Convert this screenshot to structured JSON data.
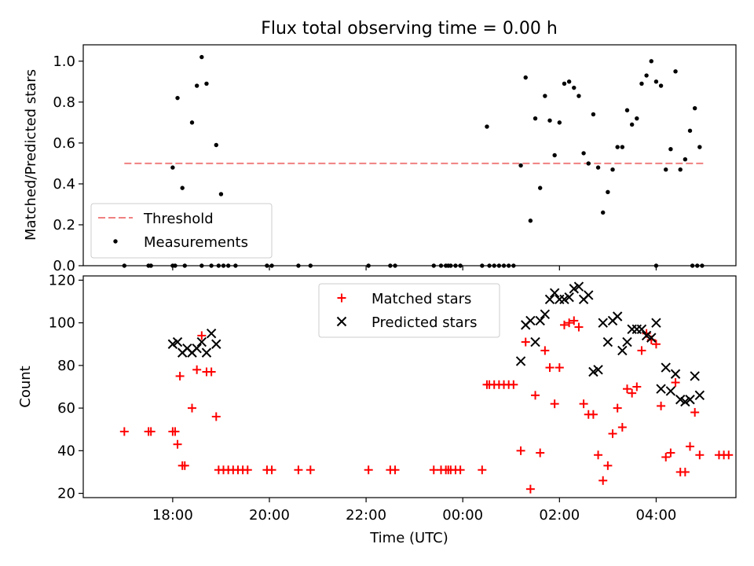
{
  "figure": {
    "title": "Flux total observing time = 0.00 h"
  },
  "chart_data": [
    {
      "type": "scatter",
      "title": "Flux total observing time = 0.00 h",
      "xlabel": "",
      "ylabel": "Matched/Predicted stars",
      "x_unit": "hours relative to 00:00 UTC",
      "xlim": [
        -7.85,
        5.65
      ],
      "ylim": [
        0.0,
        1.08
      ],
      "yticks": [
        0.0,
        0.2,
        0.4,
        0.6,
        0.8,
        1.0
      ],
      "ytick_labels": [
        "0.0",
        "0.2",
        "0.4",
        "0.6",
        "0.8",
        "1.0"
      ],
      "grid": false,
      "legend": "lower-left",
      "threshold": {
        "name": "Threshold",
        "value": 0.5,
        "x_range": [
          -7.0,
          5.0
        ],
        "color": "#f08080"
      },
      "series": [
        {
          "name": "Measurements",
          "marker": "dot",
          "color": "#000000",
          "points": [
            [
              -7.0,
              0
            ],
            [
              -6.5,
              0
            ],
            [
              -6.45,
              0
            ],
            [
              -6.0,
              0
            ],
            [
              -5.95,
              0
            ],
            [
              -5.75,
              0
            ],
            [
              -5.4,
              0
            ],
            [
              -5.2,
              0
            ],
            [
              -5.05,
              0
            ],
            [
              -4.95,
              0
            ],
            [
              -4.85,
              0
            ],
            [
              -4.7,
              0
            ],
            [
              -4.05,
              0
            ],
            [
              -3.95,
              0
            ],
            [
              -3.4,
              0
            ],
            [
              -3.15,
              0
            ],
            [
              -1.95,
              0
            ],
            [
              -1.5,
              0
            ],
            [
              -1.4,
              0
            ],
            [
              -0.6,
              0
            ],
            [
              -0.45,
              0
            ],
            [
              -0.35,
              0
            ],
            [
              -0.3,
              0
            ],
            [
              -0.25,
              0
            ],
            [
              -0.15,
              0
            ],
            [
              -0.05,
              0
            ],
            [
              0.4,
              0
            ],
            [
              0.55,
              0
            ],
            [
              0.65,
              0
            ],
            [
              0.75,
              0
            ],
            [
              0.85,
              0
            ],
            [
              0.95,
              0
            ],
            [
              1.05,
              0
            ],
            [
              4.0,
              0
            ],
            [
              4.75,
              0
            ],
            [
              4.85,
              0
            ],
            [
              4.95,
              0
            ],
            [
              -6.0,
              0.48
            ],
            [
              -5.9,
              0.82
            ],
            [
              -5.8,
              0.38
            ],
            [
              -5.6,
              0.7
            ],
            [
              -5.5,
              0.88
            ],
            [
              -5.4,
              1.02
            ],
            [
              -5.3,
              0.89
            ],
            [
              -5.1,
              0.59
            ],
            [
              -5.0,
              0.35
            ],
            [
              0.5,
              0.68
            ],
            [
              1.2,
              0.49
            ],
            [
              1.3,
              0.92
            ],
            [
              1.4,
              0.22
            ],
            [
              1.5,
              0.72
            ],
            [
              1.6,
              0.38
            ],
            [
              1.7,
              0.83
            ],
            [
              1.8,
              0.71
            ],
            [
              1.9,
              0.54
            ],
            [
              2.0,
              0.7
            ],
            [
              2.1,
              0.89
            ],
            [
              2.2,
              0.9
            ],
            [
              2.3,
              0.87
            ],
            [
              2.4,
              0.83
            ],
            [
              2.5,
              0.55
            ],
            [
              2.6,
              0.5
            ],
            [
              2.7,
              0.74
            ],
            [
              2.8,
              0.48
            ],
            [
              2.9,
              0.26
            ],
            [
              3.0,
              0.36
            ],
            [
              3.1,
              0.47
            ],
            [
              3.2,
              0.58
            ],
            [
              3.3,
              0.58
            ],
            [
              3.4,
              0.76
            ],
            [
              3.5,
              0.69
            ],
            [
              3.6,
              0.72
            ],
            [
              3.7,
              0.89
            ],
            [
              3.8,
              0.93
            ],
            [
              3.9,
              1.0
            ],
            [
              4.0,
              0.9
            ],
            [
              4.1,
              0.88
            ],
            [
              4.2,
              0.47
            ],
            [
              4.3,
              0.57
            ],
            [
              4.4,
              0.95
            ],
            [
              4.5,
              0.47
            ],
            [
              4.6,
              0.52
            ],
            [
              4.7,
              0.66
            ],
            [
              4.8,
              0.77
            ],
            [
              4.9,
              0.58
            ]
          ]
        }
      ]
    },
    {
      "type": "scatter",
      "title": "",
      "xlabel": "Time (UTC)",
      "ylabel": "Count",
      "x_unit": "hours relative to 00:00 UTC",
      "xlim": [
        -7.85,
        5.65
      ],
      "ylim": [
        18,
        122
      ],
      "xticks": [
        -6,
        -4,
        -2,
        0,
        2,
        4
      ],
      "xtick_labels": [
        "18:00",
        "20:00",
        "22:00",
        "00:00",
        "02:00",
        "04:00"
      ],
      "yticks": [
        20,
        40,
        60,
        80,
        100,
        120
      ],
      "ytick_labels": [
        "20",
        "40",
        "60",
        "80",
        "100",
        "120"
      ],
      "grid": false,
      "legend": "upper-center",
      "series": [
        {
          "name": "Matched stars",
          "marker": "plus",
          "color": "#ff0000",
          "points": [
            [
              -7.0,
              49
            ],
            [
              -6.5,
              49
            ],
            [
              -6.45,
              49
            ],
            [
              -6.0,
              49
            ],
            [
              -5.95,
              49
            ],
            [
              -5.9,
              43
            ],
            [
              -5.85,
              75
            ],
            [
              -5.8,
              33
            ],
            [
              -5.75,
              33
            ],
            [
              -5.6,
              60
            ],
            [
              -5.5,
              78
            ],
            [
              -5.4,
              94
            ],
            [
              -5.3,
              77
            ],
            [
              -5.2,
              77
            ],
            [
              -5.1,
              56
            ],
            [
              -5.05,
              31
            ],
            [
              -4.95,
              31
            ],
            [
              -4.85,
              31
            ],
            [
              -4.75,
              31
            ],
            [
              -4.65,
              31
            ],
            [
              -4.55,
              31
            ],
            [
              -4.45,
              31
            ],
            [
              -4.05,
              31
            ],
            [
              -3.95,
              31
            ],
            [
              -3.4,
              31
            ],
            [
              -3.15,
              31
            ],
            [
              -1.95,
              31
            ],
            [
              -1.5,
              31
            ],
            [
              -1.4,
              31
            ],
            [
              -0.6,
              31
            ],
            [
              -0.45,
              31
            ],
            [
              -0.35,
              31
            ],
            [
              -0.3,
              31
            ],
            [
              -0.25,
              31
            ],
            [
              -0.15,
              31
            ],
            [
              -0.05,
              31
            ],
            [
              0.4,
              31
            ],
            [
              0.5,
              71
            ],
            [
              0.55,
              71
            ],
            [
              0.65,
              71
            ],
            [
              0.75,
              71
            ],
            [
              0.85,
              71
            ],
            [
              0.95,
              71
            ],
            [
              1.05,
              71
            ],
            [
              1.2,
              40
            ],
            [
              1.3,
              91
            ],
            [
              1.4,
              22
            ],
            [
              1.5,
              66
            ],
            [
              1.6,
              39
            ],
            [
              1.7,
              87
            ],
            [
              1.8,
              79
            ],
            [
              1.9,
              62
            ],
            [
              2.0,
              79
            ],
            [
              2.1,
              99
            ],
            [
              2.2,
              100
            ],
            [
              2.3,
              101
            ],
            [
              2.4,
              98
            ],
            [
              2.5,
              62
            ],
            [
              2.6,
              57
            ],
            [
              2.7,
              57
            ],
            [
              2.8,
              38
            ],
            [
              2.9,
              26
            ],
            [
              3.0,
              33
            ],
            [
              3.1,
              48
            ],
            [
              3.2,
              60
            ],
            [
              3.3,
              51
            ],
            [
              3.4,
              69
            ],
            [
              3.5,
              67
            ],
            [
              3.6,
              70
            ],
            [
              3.7,
              87
            ],
            [
              3.8,
              95
            ],
            [
              3.9,
              92
            ],
            [
              4.0,
              90
            ],
            [
              4.1,
              61
            ],
            [
              4.2,
              37
            ],
            [
              4.3,
              39
            ],
            [
              4.4,
              72
            ],
            [
              4.5,
              30
            ],
            [
              4.6,
              30
            ],
            [
              4.7,
              42
            ],
            [
              4.8,
              58
            ],
            [
              4.9,
              38
            ],
            [
              5.3,
              38
            ],
            [
              5.4,
              38
            ],
            [
              5.5,
              38
            ]
          ]
        },
        {
          "name": "Predicted stars",
          "marker": "x",
          "color": "#000000",
          "points": [
            [
              -6.0,
              90
            ],
            [
              -5.9,
              91
            ],
            [
              -5.8,
              86
            ],
            [
              -5.7,
              88
            ],
            [
              -5.6,
              86
            ],
            [
              -5.5,
              88
            ],
            [
              -5.4,
              91
            ],
            [
              -5.3,
              86
            ],
            [
              -5.2,
              95
            ],
            [
              -5.1,
              90
            ],
            [
              1.2,
              82
            ],
            [
              1.3,
              99
            ],
            [
              1.4,
              101
            ],
            [
              1.5,
              91
            ],
            [
              1.6,
              101
            ],
            [
              1.7,
              104
            ],
            [
              1.8,
              111
            ],
            [
              1.9,
              114
            ],
            [
              2.0,
              111
            ],
            [
              2.1,
              111
            ],
            [
              2.2,
              112
            ],
            [
              2.3,
              116
            ],
            [
              2.4,
              117
            ],
            [
              2.5,
              111
            ],
            [
              2.6,
              113
            ],
            [
              2.7,
              77
            ],
            [
              2.8,
              78
            ],
            [
              2.9,
              100
            ],
            [
              3.0,
              91
            ],
            [
              3.1,
              101
            ],
            [
              3.2,
              103
            ],
            [
              3.3,
              87
            ],
            [
              3.4,
              91
            ],
            [
              3.5,
              97
            ],
            [
              3.6,
              97
            ],
            [
              3.7,
              97
            ],
            [
              3.8,
              94
            ],
            [
              3.9,
              93
            ],
            [
              4.0,
              100
            ],
            [
              4.1,
              69
            ],
            [
              4.2,
              79
            ],
            [
              4.3,
              68
            ],
            [
              4.4,
              76
            ],
            [
              4.5,
              64
            ],
            [
              4.6,
              63
            ],
            [
              4.7,
              64
            ],
            [
              4.8,
              75
            ],
            [
              4.9,
              66
            ]
          ]
        }
      ]
    }
  ]
}
